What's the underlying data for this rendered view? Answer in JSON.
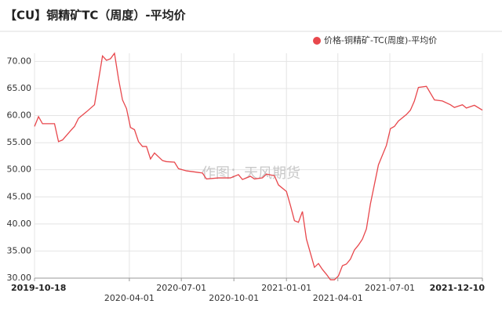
{
  "chart_data": {
    "type": "line",
    "title": "【CU】铜精矿TC（周度）-平均价",
    "watermark": "作图：天风期货",
    "legend": "top-right",
    "grid": true,
    "x": [
      "2019-10-18",
      "2019-10-25",
      "2019-11-01",
      "2019-11-22",
      "2019-11-29",
      "2019-12-06",
      "2019-12-20",
      "2019-12-27",
      "2020-01-03",
      "2020-01-17",
      "2020-01-31",
      "2020-02-14",
      "2020-02-21",
      "2020-02-28",
      "2020-03-06",
      "2020-03-13",
      "2020-03-20",
      "2020-03-27",
      "2020-04-03",
      "2020-04-10",
      "2020-04-17",
      "2020-04-24",
      "2020-05-01",
      "2020-05-08",
      "2020-05-15",
      "2020-05-29",
      "2020-06-05",
      "2020-06-19",
      "2020-06-26",
      "2020-07-10",
      "2020-07-24",
      "2020-08-07",
      "2020-08-14",
      "2020-09-04",
      "2020-09-25",
      "2020-10-09",
      "2020-10-16",
      "2020-10-30",
      "2020-11-06",
      "2020-11-20",
      "2020-11-27",
      "2020-12-11",
      "2020-12-18",
      "2021-01-01",
      "2021-01-08",
      "2021-01-15",
      "2021-01-22",
      "2021-01-29",
      "2021-02-05",
      "2021-02-12",
      "2021-02-19",
      "2021-02-26",
      "2021-03-05",
      "2021-03-12",
      "2021-03-19",
      "2021-03-26",
      "2021-04-02",
      "2021-04-09",
      "2021-04-16",
      "2021-04-23",
      "2021-04-30",
      "2021-05-07",
      "2021-05-14",
      "2021-05-21",
      "2021-05-28",
      "2021-06-04",
      "2021-06-11",
      "2021-06-25",
      "2021-07-02",
      "2021-07-09",
      "2021-07-16",
      "2021-07-30",
      "2021-08-06",
      "2021-08-13",
      "2021-08-20",
      "2021-09-03",
      "2021-09-17",
      "2021-10-01",
      "2021-10-15",
      "2021-10-22",
      "2021-11-05",
      "2021-11-12",
      "2021-11-26",
      "2021-12-10"
    ],
    "series": [
      {
        "name": "价格-铜精矿-TC(周度)-平均价",
        "color": "#e8474c",
        "values": [
          58.0,
          59.8,
          58.5,
          58.5,
          55.2,
          55.5,
          57.2,
          58.0,
          59.5,
          60.7,
          62.0,
          71.0,
          70.2,
          70.5,
          71.5,
          66.8,
          62.9,
          61.3,
          57.8,
          57.4,
          55.2,
          54.3,
          54.3,
          52.0,
          53.1,
          51.7,
          51.5,
          51.4,
          50.2,
          49.8,
          49.6,
          49.4,
          48.3,
          48.5,
          48.5,
          49.1,
          48.2,
          48.8,
          48.3,
          48.5,
          49.2,
          48.9,
          47.2,
          46.0,
          43.4,
          40.6,
          40.3,
          42.3,
          37.2,
          34.6,
          32.0,
          32.7,
          31.6,
          30.7,
          29.7,
          29.7,
          30.4,
          32.3,
          32.6,
          33.5,
          35.2,
          36.1,
          37.2,
          39.1,
          43.7,
          47.3,
          50.9,
          54.5,
          57.6,
          58.0,
          59.0,
          60.2,
          61.0,
          62.7,
          65.2,
          65.4,
          62.9,
          62.7,
          62.0,
          61.5,
          62.0,
          61.4,
          61.9,
          61.0
        ]
      }
    ],
    "xlim": [
      "2019-10-18",
      "2021-12-10"
    ],
    "xticks": [
      "2019-10-18",
      "2020-04-01",
      "2020-07-01",
      "2020-10-01",
      "2021-01-01",
      "2021-04-01",
      "2021-07-01",
      "2021-12-10"
    ],
    "ylim": [
      30,
      71.5
    ],
    "yticks": [
      {
        "value": 30,
        "label": "30.00"
      },
      {
        "value": 35,
        "label": "35.00"
      },
      {
        "value": 40,
        "label": "40.00"
      },
      {
        "value": 45,
        "label": "45.00"
      },
      {
        "value": 50,
        "label": "50.00"
      },
      {
        "value": 55,
        "label": "55.00"
      },
      {
        "value": 60,
        "label": "60.00"
      },
      {
        "value": 65,
        "label": "65.00"
      },
      {
        "value": 70,
        "label": "70.00"
      }
    ]
  }
}
